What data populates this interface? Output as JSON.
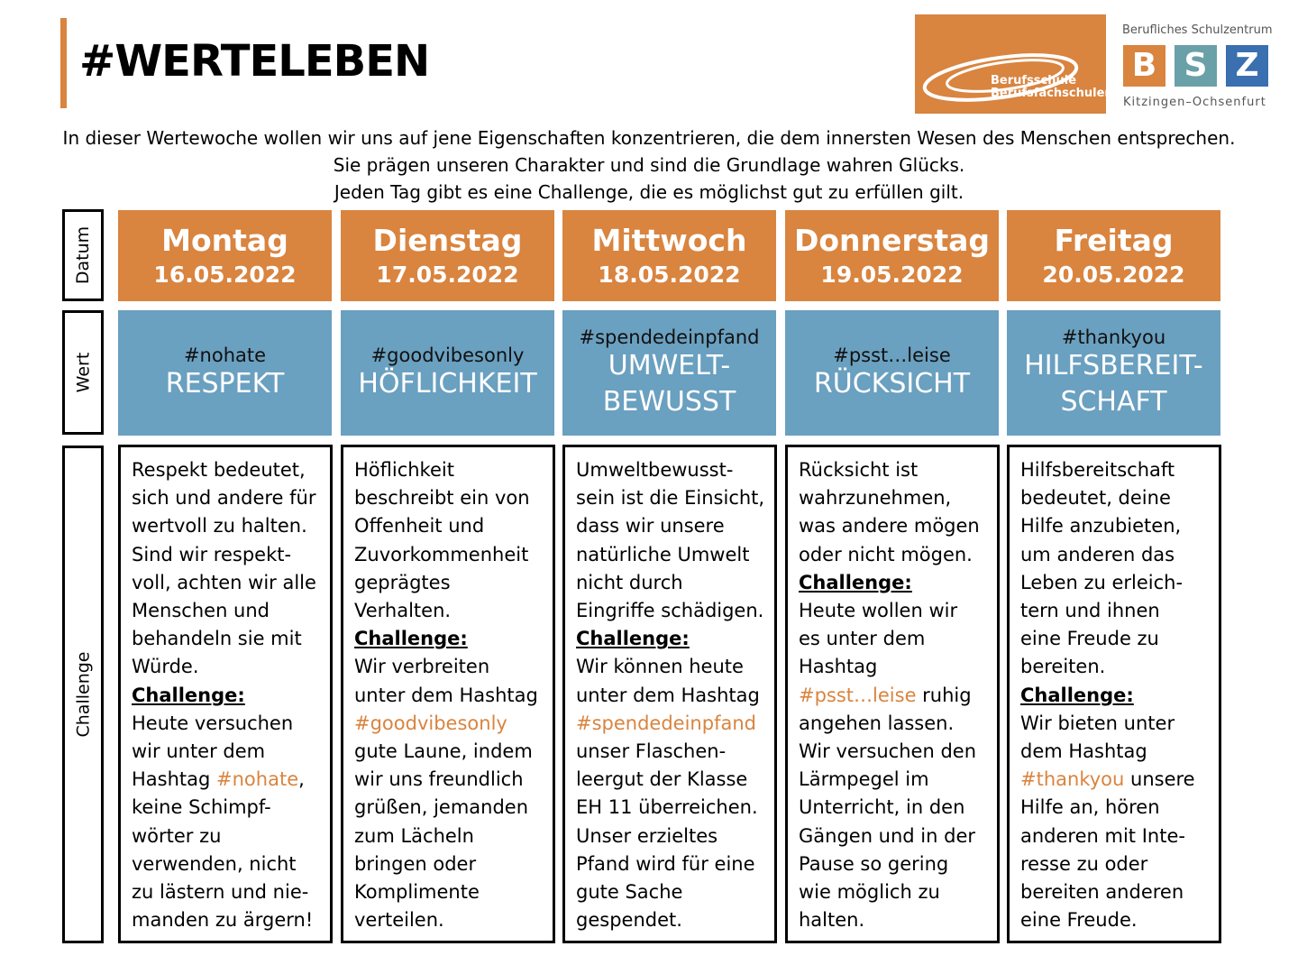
{
  "header": {
    "title": "#WERTELEBEN",
    "intro": [
      "In dieser Wertewoche wollen wir uns auf jene Eigenschaften konzentrieren, die dem innersten Wesen des Menschen entsprechen.",
      "Sie prägen unseren Charakter und sind die Grundlage wahren Glücks.",
      "Jeden Tag gibt es eine Challenge, die es möglichst gut zu erfüllen gilt."
    ]
  },
  "logos": {
    "school": {
      "line1": "Berufsschule",
      "line2": "Berufsfachschulen"
    },
    "bsz": {
      "top": "Berufliches Schulzentrum",
      "letters": [
        "B",
        "S",
        "Z"
      ],
      "bottom": "Kitzingen–Ochsenfurt"
    }
  },
  "row_labels": [
    "Datum",
    "Wert",
    "Challenge"
  ],
  "days": [
    {
      "day": "Montag",
      "date": "16.05.2022",
      "hashtag": "#nohate",
      "value": "RESPEKT",
      "description": "Respekt bedeutet,\nsich und andere für\nwertvoll zu halten.\nSind wir respekt-\nvoll, achten wir alle\nMenschen und\nbehandeln sie mit\nWürde.",
      "challenge_label": "Challenge:",
      "challenge_before": "Heute versuchen\nwir unter dem\nHashtag ",
      "challenge_hashtag": "#nohate",
      "challenge_after": ",\nkeine Schimpf-\nwörter zu\nverwenden, nicht\nzu lästern und nie-\nmanden zu ärgern!"
    },
    {
      "day": "Dienstag",
      "date": "17.05.2022",
      "hashtag": "#goodvibesonly",
      "value": "HÖFLICHKEIT",
      "description": "Höflichkeit\nbeschreibt ein von\nOffenheit und\nZuvorkommenheit\ngeprägtes\nVerhalten.",
      "challenge_label": "Challenge:",
      "challenge_before": "Wir verbreiten\nunter dem Hashtag\n",
      "challenge_hashtag": "#goodvibesonly",
      "challenge_after": "\ngute Laune, indem\nwir uns freundlich\ngrüßen, jemanden\nzum Lächeln\nbringen oder\nKomplimente\nverteilen."
    },
    {
      "day": "Mittwoch",
      "date": "18.05.2022",
      "hashtag": "#spendedeinpfand",
      "value": "UMWELT-\nBEWUSST",
      "description": "Umweltbewusst-\nsein ist die Einsicht,\ndass wir unsere\nnatürliche Umwelt\nnicht durch\nEingriffe schädigen.",
      "challenge_label": "Challenge:",
      "challenge_before": "Wir können heute\nunter dem Hashtag\n",
      "challenge_hashtag": "#spendedeinpfand",
      "challenge_after": "\nunser Flaschen-\nleergut der Klasse\nEH 11 überreichen.\nUnser erzieltes\nPfand wird für eine\ngute Sache\ngespendet."
    },
    {
      "day": "Donnerstag",
      "date": "19.05.2022",
      "hashtag": "#psst…leise",
      "value": "RÜCKSICHT",
      "description": "Rücksicht ist\nwahrzunehmen,\nwas andere mögen\noder nicht mögen.",
      "challenge_label": "Challenge:",
      "challenge_before": "Heute wollen wir\nes unter dem\nHashtag\n",
      "challenge_hashtag": "#psst…leise",
      "challenge_after": " ruhig\nangehen lassen.\nWir versuchen den\nLärmpegel im\nUnterricht, in den\nGängen und in der\nPause so gering\nwie möglich zu\nhalten."
    },
    {
      "day": "Freitag",
      "date": "20.05.2022",
      "hashtag": "#thankyou",
      "value": "HILFSBEREIT-\nSCHAFT",
      "description": "Hilfsbereitschaft\nbedeutet, deine\nHilfe anzubieten,\num anderen das\nLeben zu erleich-\ntern und ihnen\neine Freude zu\nbereiten.",
      "challenge_label": "Challenge:",
      "challenge_before": "Wir bieten unter\ndem Hashtag\n",
      "challenge_hashtag": "#thankyou",
      "challenge_after": " unsere\nHilfe an, hören\nanderen mit Inte-\nresse zu oder\nbereiten anderen\neine Freude."
    }
  ]
}
